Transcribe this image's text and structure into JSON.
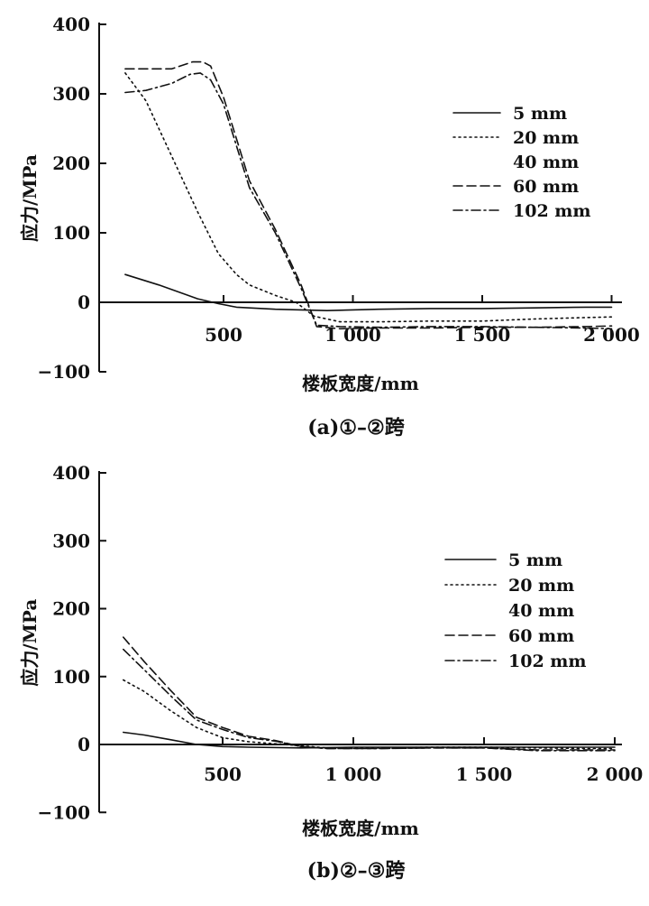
{
  "chart_data": [
    {
      "type": "line",
      "caption": "(a)①–②跨",
      "xlabel": "楼板宽度/mm",
      "ylabel": "应力/MPa",
      "xlim": [
        0,
        2000
      ],
      "ylim": [
        -100,
        400
      ],
      "xticks": [
        500,
        1000,
        1500,
        2000
      ],
      "xtick_labels": [
        "500",
        "1 000",
        "1 500",
        "2 000"
      ],
      "yticks": [
        -100,
        0,
        100,
        200,
        300,
        400
      ],
      "ytick_labels": [
        "−100",
        "0",
        "100",
        "200",
        "300",
        "400"
      ],
      "grid": false,
      "legend_position": "top-right",
      "series": [
        {
          "name": "5 mm",
          "dash": "solid",
          "x": [
            120,
            250,
            400,
            480,
            550,
            700,
            900,
            1100,
            1300,
            1500,
            1700,
            1900,
            2000
          ],
          "y": [
            40,
            25,
            5,
            -2,
            -7,
            -10,
            -12,
            -10,
            -9,
            -9,
            -8,
            -7,
            -7
          ]
        },
        {
          "name": "20 mm",
          "dash": "dotted",
          "x": [
            120,
            200,
            300,
            400,
            480,
            550,
            600,
            700,
            780,
            850,
            950,
            1100,
            1300,
            1500,
            1700,
            1900,
            2000
          ],
          "y": [
            330,
            290,
            210,
            130,
            70,
            40,
            25,
            10,
            0,
            -20,
            -28,
            -28,
            -27,
            -27,
            -24,
            -22,
            -21
          ]
        },
        {
          "name": "40 mm",
          "dash": "none",
          "x": [
            120,
            200,
            300,
            380,
            420,
            450,
            500,
            550,
            600,
            700,
            800,
            860,
            950,
            1100,
            1300,
            1500,
            1700,
            1900,
            2000
          ],
          "y": [
            336,
            337,
            337,
            346,
            346,
            340,
            300,
            240,
            180,
            110,
            30,
            -33,
            -37,
            -37,
            -36,
            -36,
            -35,
            -34,
            -33
          ]
        },
        {
          "name": "60 mm",
          "dash": "dashed",
          "x": [
            120,
            200,
            300,
            380,
            420,
            450,
            500,
            550,
            600,
            700,
            800,
            860,
            950,
            1100,
            1300,
            1500,
            1700,
            1900,
            2000
          ],
          "y": [
            336,
            336,
            336,
            346,
            346,
            340,
            295,
            235,
            175,
            105,
            25,
            -35,
            -38,
            -37,
            -37,
            -36,
            -36,
            -35,
            -34
          ]
        },
        {
          "name": "102 mm",
          "dash": "dashdot",
          "x": [
            120,
            200,
            300,
            370,
            410,
            450,
            500,
            550,
            600,
            700,
            800,
            860,
            950,
            1100,
            1300,
            1500,
            1700,
            1900,
            2000
          ],
          "y": [
            302,
            305,
            315,
            328,
            330,
            320,
            285,
            225,
            165,
            100,
            20,
            -33,
            -35,
            -36,
            -35,
            -35,
            -36,
            -37,
            -38
          ]
        }
      ]
    },
    {
      "type": "line",
      "caption": "(b)②–③跨",
      "xlabel": "楼板宽度/mm",
      "ylabel": "应力/MPa",
      "xlim": [
        0,
        2000
      ],
      "ylim": [
        -100,
        400
      ],
      "xticks": [
        500,
        1000,
        1500,
        2000
      ],
      "xtick_labels": [
        "500",
        "1 000",
        "1 500",
        "2 000"
      ],
      "yticks": [
        -100,
        0,
        100,
        200,
        300,
        400
      ],
      "ytick_labels": [
        "−100",
        "0",
        "100",
        "200",
        "300",
        "400"
      ],
      "grid": false,
      "legend_position": "right",
      "series": [
        {
          "name": "5 mm",
          "dash": "solid",
          "x": [
            120,
            200,
            300,
            400,
            500,
            600,
            800,
            1000,
            1200,
            1500,
            1800,
            2000
          ],
          "y": [
            18,
            14,
            7,
            0,
            -3,
            -4,
            -5,
            -4,
            -4,
            -4,
            -4,
            -4
          ]
        },
        {
          "name": "20 mm",
          "dash": "dotted",
          "x": [
            120,
            200,
            300,
            400,
            500,
            600,
            700,
            800,
            900,
            1100,
            1300,
            1500,
            1700,
            1900,
            2000
          ],
          "y": [
            95,
            78,
            50,
            25,
            10,
            4,
            1,
            -2,
            -5,
            -5,
            -4,
            -4,
            -5,
            -6,
            -6
          ]
        },
        {
          "name": "40 mm",
          "dash": "none",
          "x": [
            120,
            200,
            300,
            400,
            500,
            600,
            700,
            800,
            900,
            1100,
            1300,
            1500,
            1700,
            1900,
            2000
          ],
          "y": [
            150,
            115,
            75,
            38,
            25,
            12,
            5,
            -3,
            -6,
            -6,
            -5,
            -5,
            -8,
            -8,
            -8
          ]
        },
        {
          "name": "60 mm",
          "dash": "dashed",
          "x": [
            120,
            200,
            300,
            400,
            500,
            600,
            700,
            800,
            900,
            1100,
            1300,
            1500,
            1700,
            1900,
            2000
          ],
          "y": [
            158,
            122,
            80,
            40,
            25,
            12,
            6,
            -3,
            -6,
            -6,
            -5,
            -5,
            -8,
            -8,
            -8
          ]
        },
        {
          "name": "102 mm",
          "dash": "dashdot",
          "x": [
            120,
            200,
            300,
            400,
            500,
            600,
            700,
            800,
            900,
            1100,
            1300,
            1500,
            1700,
            1900,
            2000
          ],
          "y": [
            140,
            110,
            72,
            36,
            22,
            10,
            5,
            -3,
            -6,
            -6,
            -5,
            -5,
            -9,
            -9,
            -9
          ]
        }
      ]
    }
  ]
}
